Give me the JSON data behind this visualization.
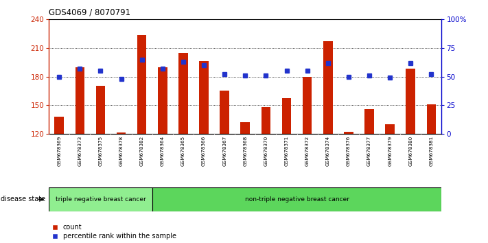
{
  "title": "GDS4069 / 8070791",
  "samples": [
    "GSM678369",
    "GSM678373",
    "GSM678375",
    "GSM678378",
    "GSM678382",
    "GSM678364",
    "GSM678365",
    "GSM678366",
    "GSM678367",
    "GSM678368",
    "GSM678370",
    "GSM678371",
    "GSM678372",
    "GSM678374",
    "GSM678376",
    "GSM678377",
    "GSM678379",
    "GSM678380",
    "GSM678381"
  ],
  "bar_values": [
    138,
    190,
    170,
    121,
    224,
    190,
    205,
    196,
    165,
    132,
    148,
    157,
    180,
    217,
    122,
    146,
    130,
    188,
    151
  ],
  "percentile_values": [
    50,
    57,
    55,
    48,
    65,
    57,
    63,
    60,
    52,
    51,
    51,
    55,
    55,
    62,
    50,
    51,
    49,
    62,
    52
  ],
  "bar_color": "#CC2200",
  "percentile_color": "#2233CC",
  "ylim_left": [
    120,
    240
  ],
  "ylim_right": [
    0,
    100
  ],
  "yticks_left": [
    120,
    150,
    180,
    210,
    240
  ],
  "yticks_right": [
    0,
    25,
    50,
    75,
    100
  ],
  "ytick_labels_right": [
    "0",
    "25",
    "50",
    "75",
    "100%"
  ],
  "group1_label": "triple negative breast cancer",
  "group2_label": "non-triple negative breast cancer",
  "group1_count": 5,
  "group2_count": 14,
  "disease_state_label": "disease state",
  "legend_count_label": "count",
  "legend_percentile_label": "percentile rank within the sample",
  "bg_color": "#ffffff",
  "plot_bg": "#ffffff",
  "label_area_bg": "#d0d0d0",
  "group1_bg": "#90EE90",
  "group2_bg": "#5CD65C",
  "title_color": "#000000",
  "left_axis_color": "#CC2200",
  "right_axis_color": "#0000CC"
}
